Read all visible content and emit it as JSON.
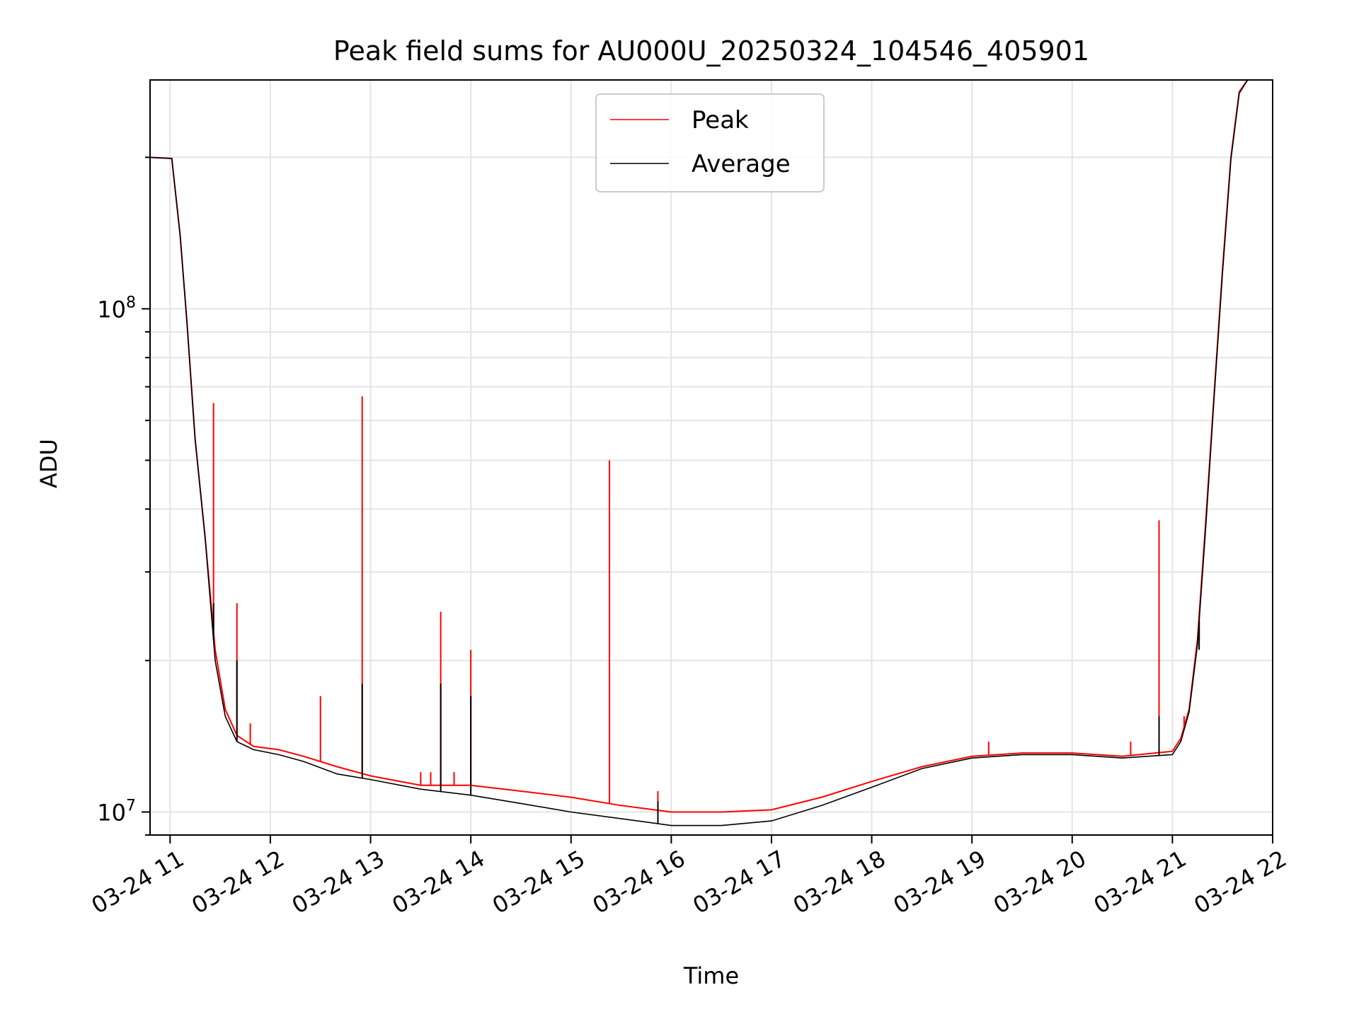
{
  "chart_data": {
    "type": "line",
    "title": "Peak field sums for AU000U_20250324_104546_405901",
    "xlabel": "Time",
    "ylabel": "ADU",
    "y_scale": "log",
    "ylim": [
      9000000,
      285000000
    ],
    "xlim": [
      "2025-03-24 10:48",
      "2025-03-24 22:00"
    ],
    "grid": true,
    "legend_position": "top-center",
    "x_ticks": [
      {
        "t": "2025-03-24 11:00",
        "label": "03-24 11"
      },
      {
        "t": "2025-03-24 12:00",
        "label": "03-24 12"
      },
      {
        "t": "2025-03-24 13:00",
        "label": "03-24 13"
      },
      {
        "t": "2025-03-24 14:00",
        "label": "03-24 14"
      },
      {
        "t": "2025-03-24 15:00",
        "label": "03-24 15"
      },
      {
        "t": "2025-03-24 16:00",
        "label": "03-24 16"
      },
      {
        "t": "2025-03-24 17:00",
        "label": "03-24 17"
      },
      {
        "t": "2025-03-24 18:00",
        "label": "03-24 18"
      },
      {
        "t": "2025-03-24 19:00",
        "label": "03-24 19"
      },
      {
        "t": "2025-03-24 20:00",
        "label": "03-24 20"
      },
      {
        "t": "2025-03-24 21:00",
        "label": "03-24 21"
      },
      {
        "t": "2025-03-24 22:00",
        "label": "03-24 22"
      }
    ],
    "y_major_ticks": [
      {
        "value": 10000000,
        "base": "10",
        "exp": "7"
      },
      {
        "value": 100000000,
        "base": "10",
        "exp": "8"
      }
    ],
    "series": [
      {
        "name": "Peak",
        "color": "#ff0000",
        "points": [
          [
            "2025-03-24 10:48",
            200000000
          ],
          [
            "2025-03-24 11:01",
            199000000
          ],
          [
            "2025-03-24 11:06",
            140000000
          ],
          [
            "2025-03-24 11:10",
            95000000
          ],
          [
            "2025-03-24 11:15",
            55000000
          ],
          [
            "2025-03-24 11:21",
            35000000
          ],
          [
            "2025-03-24 11:27",
            21000000
          ],
          [
            "2025-03-24 11:33",
            16000000
          ],
          [
            "2025-03-24 11:40",
            14200000
          ],
          [
            "2025-03-24 11:50",
            13500000
          ],
          [
            "2025-03-24 12:05",
            13300000
          ],
          [
            "2025-03-24 12:20",
            12900000
          ],
          [
            "2025-03-24 12:40",
            12300000
          ],
          [
            "2025-03-24 13:00",
            11800000
          ],
          [
            "2025-03-24 13:30",
            11300000
          ],
          [
            "2025-03-24 14:00",
            11300000
          ],
          [
            "2025-03-24 14:30",
            11000000
          ],
          [
            "2025-03-24 15:00",
            10700000
          ],
          [
            "2025-03-24 15:30",
            10300000
          ],
          [
            "2025-03-24 16:00",
            10000000
          ],
          [
            "2025-03-24 16:30",
            10000000
          ],
          [
            "2025-03-24 17:00",
            10100000
          ],
          [
            "2025-03-24 17:30",
            10700000
          ],
          [
            "2025-03-24 18:00",
            11500000
          ],
          [
            "2025-03-24 18:30",
            12300000
          ],
          [
            "2025-03-24 19:00",
            12900000
          ],
          [
            "2025-03-24 19:30",
            13100000
          ],
          [
            "2025-03-24 20:00",
            13100000
          ],
          [
            "2025-03-24 20:30",
            12900000
          ],
          [
            "2025-03-24 21:00",
            13200000
          ],
          [
            "2025-03-24 21:05",
            14000000
          ],
          [
            "2025-03-24 21:10",
            16000000
          ],
          [
            "2025-03-24 21:15",
            22000000
          ],
          [
            "2025-03-24 21:20",
            38000000
          ],
          [
            "2025-03-24 21:25",
            68000000
          ],
          [
            "2025-03-24 21:30",
            120000000
          ],
          [
            "2025-03-24 21:35",
            200000000
          ],
          [
            "2025-03-24 21:40",
            270000000
          ],
          [
            "2025-03-24 21:45",
            285000000
          ]
        ],
        "spikes": [
          [
            "2025-03-24 11:26",
            65000000
          ],
          [
            "2025-03-24 11:40",
            26000000
          ],
          [
            "2025-03-24 11:48",
            15000000
          ],
          [
            "2025-03-24 12:30",
            17000000
          ],
          [
            "2025-03-24 12:55",
            67000000
          ],
          [
            "2025-03-24 13:30",
            12000000
          ],
          [
            "2025-03-24 13:36",
            12000000
          ],
          [
            "2025-03-24 13:42",
            25000000
          ],
          [
            "2025-03-24 13:50",
            12000000
          ],
          [
            "2025-03-24 14:00",
            21000000
          ],
          [
            "2025-03-24 15:23",
            50000000
          ],
          [
            "2025-03-24 15:52",
            11000000
          ],
          [
            "2025-03-24 19:10",
            13800000
          ],
          [
            "2025-03-24 20:35",
            13800000
          ],
          [
            "2025-03-24 20:52",
            38000000
          ],
          [
            "2025-03-24 21:07",
            15500000
          ],
          [
            "2025-03-24 21:10",
            16000000
          ],
          [
            "2025-03-24 21:16",
            22000000
          ]
        ]
      },
      {
        "name": "Average",
        "color": "#000000",
        "points": [
          [
            "2025-03-24 10:48",
            200000000
          ],
          [
            "2025-03-24 11:01",
            199000000
          ],
          [
            "2025-03-24 11:06",
            140000000
          ],
          [
            "2025-03-24 11:10",
            95000000
          ],
          [
            "2025-03-24 11:15",
            55000000
          ],
          [
            "2025-03-24 11:21",
            35000000
          ],
          [
            "2025-03-24 11:27",
            20000000
          ],
          [
            "2025-03-24 11:33",
            15500000
          ],
          [
            "2025-03-24 11:40",
            13800000
          ],
          [
            "2025-03-24 11:50",
            13300000
          ],
          [
            "2025-03-24 12:05",
            13000000
          ],
          [
            "2025-03-24 12:20",
            12600000
          ],
          [
            "2025-03-24 12:40",
            11900000
          ],
          [
            "2025-03-24 13:00",
            11600000
          ],
          [
            "2025-03-24 13:30",
            11100000
          ],
          [
            "2025-03-24 14:00",
            10800000
          ],
          [
            "2025-03-24 14:30",
            10400000
          ],
          [
            "2025-03-24 15:00",
            10000000
          ],
          [
            "2025-03-24 15:30",
            9700000
          ],
          [
            "2025-03-24 16:00",
            9400000
          ],
          [
            "2025-03-24 16:30",
            9400000
          ],
          [
            "2025-03-24 17:00",
            9600000
          ],
          [
            "2025-03-24 17:30",
            10300000
          ],
          [
            "2025-03-24 18:00",
            11200000
          ],
          [
            "2025-03-24 18:30",
            12200000
          ],
          [
            "2025-03-24 19:00",
            12800000
          ],
          [
            "2025-03-24 19:30",
            13000000
          ],
          [
            "2025-03-24 20:00",
            13000000
          ],
          [
            "2025-03-24 20:30",
            12800000
          ],
          [
            "2025-03-24 21:00",
            13000000
          ],
          [
            "2025-03-24 21:05",
            13800000
          ],
          [
            "2025-03-24 21:10",
            15800000
          ],
          [
            "2025-03-24 21:15",
            21500000
          ],
          [
            "2025-03-24 21:20",
            37000000
          ],
          [
            "2025-03-24 21:25",
            67000000
          ],
          [
            "2025-03-24 21:30",
            118000000
          ],
          [
            "2025-03-24 21:35",
            198000000
          ],
          [
            "2025-03-24 21:40",
            268000000
          ],
          [
            "2025-03-24 21:45",
            285000000
          ]
        ],
        "spikes": [
          [
            "2025-03-24 11:26",
            26000000
          ],
          [
            "2025-03-24 11:40",
            20000000
          ],
          [
            "2025-03-24 12:55",
            18000000
          ],
          [
            "2025-03-24 13:42",
            18000000
          ],
          [
            "2025-03-24 14:00",
            17000000
          ],
          [
            "2025-03-24 15:52",
            10500000
          ],
          [
            "2025-03-24 20:52",
            15500000
          ],
          [
            "2025-03-24 21:16",
            21000000
          ]
        ]
      }
    ]
  }
}
